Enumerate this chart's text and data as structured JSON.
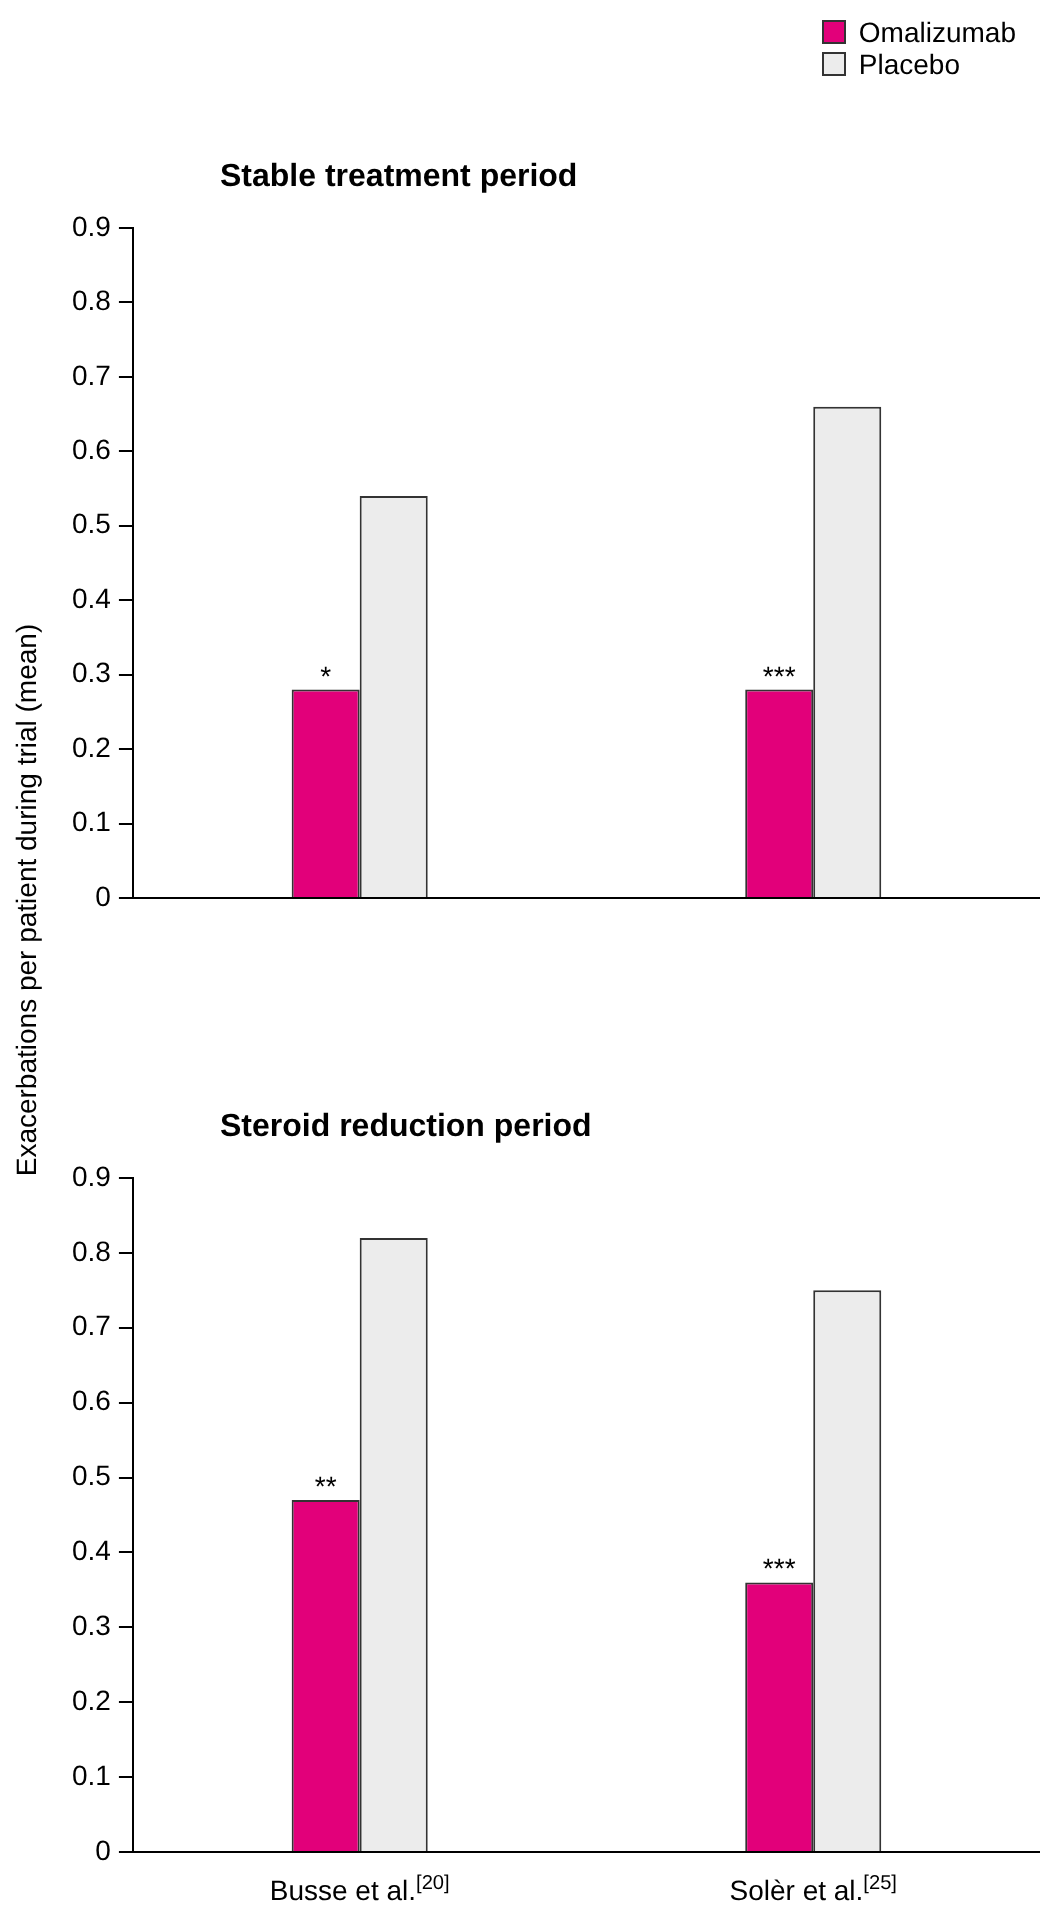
{
  "chart_data": [
    {
      "type": "bar",
      "title": "Stable treatment period",
      "ylabel": "Exacerbations per patient during trial (mean)",
      "categories": [
        "Busse et al.$^{[20]}$",
        "Solèr et al.$^{[25]}$"
      ],
      "series": [
        {
          "name": "Omalizumab",
          "color": "#e2007a",
          "values": [
            0.28,
            0.28
          ]
        },
        {
          "name": "Placebo",
          "color": "#ececec",
          "values": [
            0.54,
            0.66
          ]
        }
      ],
      "ylim": [
        0,
        0.9
      ],
      "yticks": [
        0,
        0.1,
        0.2,
        0.3,
        0.4,
        0.5,
        0.6,
        0.7,
        0.8,
        0.9
      ],
      "grid": false,
      "legend": "top right",
      "tick_labels": "y",
      "annotations": [
        {
          "text": "*",
          "x": "Busse et al.$^{[20]}$",
          "y": 0.28
        },
        {
          "text": "***",
          "x": "Solèr et al.$^{[25]}$",
          "y": 0.28
        }
      ]
    },
    {
      "type": "bar",
      "title": "Steroid reduction period",
      "categories": [
        "Busse et al.$^{[20]}$",
        "Solèr et al.$^{[25]}$"
      ],
      "series": [
        {
          "color": "#e2007a",
          "values": [
            0.47,
            0.36
          ]
        },
        {
          "color": "#ececec",
          "values": [
            0.82,
            0.75
          ]
        }
      ],
      "ylim": [
        0,
        0.9
      ],
      "yticks": [
        0,
        0.1,
        0.2,
        0.3,
        0.4,
        0.5,
        0.6,
        0.7,
        0.8,
        0.9
      ],
      "grid": false,
      "legend": false,
      "annotations": [
        {
          "text": "**",
          "x": "Busse et al.$^{[20]}$",
          "y": 0.47
        },
        {
          "text": "***",
          "x": "Solèr et al.$^{[25]}$",
          "y": 0.36
        }
      ]
    }
  ]
}
